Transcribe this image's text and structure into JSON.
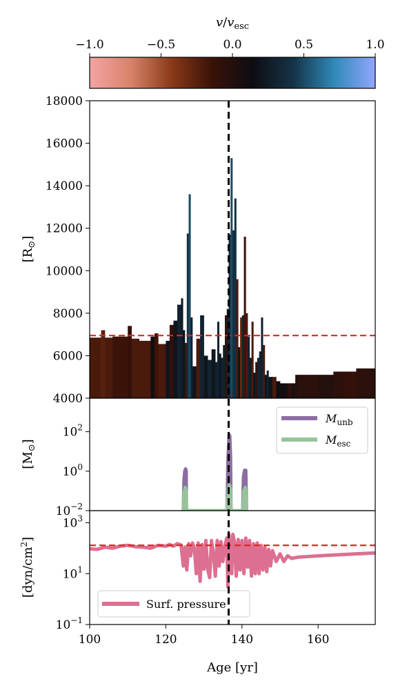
{
  "colorbar": {
    "label_v": "v",
    "label_slash": "/",
    "label_sub_v": "v",
    "label_sub": "esc",
    "ticks": [
      -1.0,
      -0.5,
      0.0,
      0.5,
      1.0
    ],
    "tick_labels": [
      "−1.0",
      "−0.5",
      "0.0",
      "0.5",
      "1.0"
    ],
    "colors": [
      "#f4a3a3",
      "#d9836b",
      "#8a3a18",
      "#3a1208",
      "#0d0d12",
      "#153448",
      "#2f8ab8",
      "#92a5ff"
    ]
  },
  "chart_data": [
    {
      "type": "bar",
      "panel": "radius",
      "ylabel_main": "[R",
      "ylabel_sym": "⊙",
      "ylabel_close": "]",
      "ylim": [
        4000,
        18000
      ],
      "yticks": [
        4000,
        6000,
        8000,
        10000,
        12000,
        14000,
        16000,
        18000
      ],
      "xlim": [
        100,
        175
      ],
      "reference_line_y": 6950,
      "vertical_line_x": 136.5,
      "bars": [
        [
          100,
          103,
          6850,
          -0.2
        ],
        [
          103,
          104,
          7200,
          -0.25
        ],
        [
          104,
          106,
          6850,
          -0.2
        ],
        [
          106,
          110,
          6900,
          -0.15
        ],
        [
          110,
          111,
          7400,
          -0.1
        ],
        [
          111,
          113,
          6800,
          -0.2
        ],
        [
          113,
          116,
          6700,
          -0.2
        ],
        [
          116,
          117,
          6900,
          0.1
        ],
        [
          117,
          118,
          7050,
          -0.15
        ],
        [
          118,
          120,
          6550,
          -0.2
        ],
        [
          120,
          121,
          6700,
          0.2
        ],
        [
          121,
          122,
          7450,
          -0.1
        ],
        [
          122,
          123,
          7650,
          0.2
        ],
        [
          123,
          124,
          8400,
          0.3
        ],
        [
          124,
          124.5,
          8700,
          0.25
        ],
        [
          124.5,
          125,
          7200,
          0.2
        ],
        [
          125,
          125.5,
          6600,
          -0.15
        ],
        [
          125.5,
          126,
          11750,
          0.4
        ],
        [
          126,
          126.5,
          13600,
          0.5
        ],
        [
          126.5,
          127,
          7800,
          0.3
        ],
        [
          127,
          128,
          5500,
          0.2
        ],
        [
          128,
          129,
          6800,
          -0.2
        ],
        [
          129,
          130,
          7900,
          0.3
        ],
        [
          130,
          131,
          6000,
          0.2
        ],
        [
          131,
          132,
          5800,
          0.3
        ],
        [
          132,
          133,
          6300,
          0.2
        ],
        [
          133,
          133.5,
          5700,
          0.3
        ],
        [
          133.5,
          134,
          7600,
          0.3
        ],
        [
          134,
          134.5,
          6100,
          0.2
        ],
        [
          134.5,
          135,
          5900,
          0.3
        ],
        [
          135,
          135.5,
          6500,
          0.3
        ],
        [
          135.5,
          136,
          7900,
          -0.1
        ],
        [
          136,
          136.5,
          8200,
          0.3
        ],
        [
          136.5,
          137,
          11700,
          0.4
        ],
        [
          137,
          137.5,
          15300,
          0.5
        ],
        [
          137.5,
          138,
          11900,
          0.4
        ],
        [
          138,
          138.5,
          13400,
          0.4
        ],
        [
          138.5,
          139,
          9600,
          -0.2
        ],
        [
          139,
          139.5,
          6400,
          0.2
        ],
        [
          139.5,
          140,
          7800,
          -0.3
        ],
        [
          140,
          140.5,
          7900,
          0.3
        ],
        [
          140.5,
          141,
          11600,
          -0.15
        ],
        [
          141,
          141.5,
          8000,
          -0.2
        ],
        [
          141.5,
          142,
          6900,
          0.3
        ],
        [
          142,
          142.5,
          5900,
          0.25
        ],
        [
          142.5,
          143,
          7600,
          -0.2
        ],
        [
          143,
          143.5,
          5200,
          0.2
        ],
        [
          143.5,
          144,
          5700,
          -0.1
        ],
        [
          144,
          144.5,
          5900,
          0.3
        ],
        [
          144.5,
          145,
          6200,
          0.3
        ],
        [
          145,
          145.5,
          7800,
          0.3
        ],
        [
          145.5,
          146,
          6500,
          -0.2
        ],
        [
          146,
          146.5,
          5100,
          0.2
        ],
        [
          146.5,
          147,
          5300,
          0.3
        ],
        [
          147,
          148,
          5000,
          0.2
        ],
        [
          148,
          149,
          5000,
          -0.2
        ],
        [
          149,
          150,
          4800,
          0.15
        ],
        [
          150,
          152,
          4700,
          0.1
        ],
        [
          152,
          153,
          4700,
          -0.05
        ],
        [
          153,
          154,
          4700,
          0.05
        ],
        [
          154,
          155,
          5100,
          0.0
        ],
        [
          155,
          160,
          5100,
          -0.05
        ],
        [
          160,
          164,
          5100,
          0.0
        ],
        [
          164,
          167,
          5250,
          -0.05
        ],
        [
          167,
          170,
          5250,
          -0.1
        ],
        [
          170,
          175,
          5400,
          -0.05
        ]
      ]
    },
    {
      "type": "line",
      "panel": "mass",
      "ylabel_main": "[M",
      "ylabel_sym": "⊙",
      "ylabel_close": "]",
      "yscale": "log",
      "ylim": [
        0.01,
        5000
      ],
      "ytick_exponents": [
        -2,
        0,
        2
      ],
      "xlim": [
        100,
        175
      ],
      "vertical_line_x": 136.5,
      "series": [
        {
          "name_main": "M",
          "name_sub": "unb",
          "color": "#8d6da4",
          "points": [
            [
              124.6,
              0.01
            ],
            [
              124.8,
              0.4
            ],
            [
              125.0,
              1.0
            ],
            [
              125.2,
              1.3
            ],
            [
              125.35,
              1.0
            ],
            [
              125.4,
              0.01
            ],
            [
              136.1,
              0.01
            ],
            [
              136.3,
              3
            ],
            [
              136.5,
              20
            ],
            [
              136.65,
              70
            ],
            [
              136.8,
              60
            ],
            [
              137.0,
              5
            ],
            [
              137.1,
              0.01
            ],
            [
              140.2,
              0.01
            ],
            [
              140.4,
              0.5
            ],
            [
              140.7,
              1.1
            ],
            [
              141.0,
              1.1
            ],
            [
              141.2,
              0.01
            ]
          ]
        },
        {
          "name_main": "M",
          "name_sub": "esc",
          "color": "#96c49a",
          "points": [
            [
              124.6,
              0.01
            ],
            [
              124.8,
              0.08
            ],
            [
              125.1,
              0.15
            ],
            [
              125.35,
              0.1
            ],
            [
              125.4,
              0.01
            ],
            [
              136.1,
              0.01
            ],
            [
              136.4,
              0.12
            ],
            [
              136.7,
              0.2
            ],
            [
              137.0,
              0.12
            ],
            [
              137.1,
              0.01
            ],
            [
              140.2,
              0.01
            ],
            [
              140.5,
              0.1
            ],
            [
              140.9,
              0.15
            ],
            [
              141.2,
              0.01
            ]
          ]
        }
      ]
    },
    {
      "type": "line",
      "panel": "pressure",
      "ylabel_main": "[dyn/cm",
      "ylabel_sup": "2",
      "ylabel_close": "]",
      "xlabel": "Age [yr]",
      "yscale": "log",
      "ylim": [
        0.1,
        3000
      ],
      "ytick_exponents": [
        -1,
        1,
        3
      ],
      "xlim": [
        100,
        175
      ],
      "xticks": [
        100,
        120,
        140,
        160
      ],
      "reference_line_y": 130,
      "vertical_line_x": 136.5,
      "series": [
        {
          "name": "Surf. pressure",
          "color": "#dd6f90",
          "points": [
            [
              100,
              95
            ],
            [
              102,
              90
            ],
            [
              104,
              110
            ],
            [
              106,
              100
            ],
            [
              108,
              120
            ],
            [
              110,
              130
            ],
            [
              112,
              115
            ],
            [
              114,
              110
            ],
            [
              116,
              100
            ],
            [
              118,
              130
            ],
            [
              120,
              120
            ],
            [
              121,
              140
            ],
            [
              122,
              120
            ],
            [
              123,
              150
            ],
            [
              124,
              135
            ],
            [
              124.6,
              20
            ],
            [
              125,
              110
            ],
            [
              125.5,
              14
            ],
            [
              126,
              150
            ],
            [
              126.5,
              50
            ],
            [
              127,
              160
            ],
            [
              127.5,
              100
            ],
            [
              128,
              10
            ],
            [
              128.5,
              160
            ],
            [
              129,
              5
            ],
            [
              129.5,
              140
            ],
            [
              130,
              15
            ],
            [
              130.5,
              200
            ],
            [
              131,
              15
            ],
            [
              131.5,
              7
            ],
            [
              132,
              200
            ],
            [
              132.5,
              60
            ],
            [
              133,
              8
            ],
            [
              133.5,
              200
            ],
            [
              134,
              20
            ],
            [
              134.5,
              180
            ],
            [
              135,
              30
            ],
            [
              135.5,
              120
            ],
            [
              136,
              250
            ],
            [
              136.3,
              3
            ],
            [
              136.6,
              350
            ],
            [
              137,
              50
            ],
            [
              137.3,
              10
            ],
            [
              137.6,
              350
            ],
            [
              138,
              180
            ],
            [
              138.5,
              8
            ],
            [
              139,
              220
            ],
            [
              139.5,
              14
            ],
            [
              140,
              200
            ],
            [
              140.5,
              10
            ],
            [
              141,
              250
            ],
            [
              141.5,
              18
            ],
            [
              142,
              200
            ],
            [
              142.5,
              8
            ],
            [
              143,
              150
            ],
            [
              143.5,
              10
            ],
            [
              144,
              160
            ],
            [
              144.5,
              10
            ],
            [
              145,
              130
            ],
            [
              145.5,
              14
            ],
            [
              146,
              110
            ],
            [
              146.5,
              12
            ],
            [
              147,
              90
            ],
            [
              147.5,
              20
            ],
            [
              148,
              80
            ],
            [
              149,
              30
            ],
            [
              150,
              60
            ],
            [
              151,
              30
            ],
            [
              152,
              50
            ],
            [
              153,
              40
            ],
            [
              155,
              45
            ],
            [
              158,
              48
            ],
            [
              162,
              52
            ],
            [
              166,
              56
            ],
            [
              170,
              60
            ],
            [
              175,
              65
            ]
          ]
        }
      ]
    }
  ]
}
